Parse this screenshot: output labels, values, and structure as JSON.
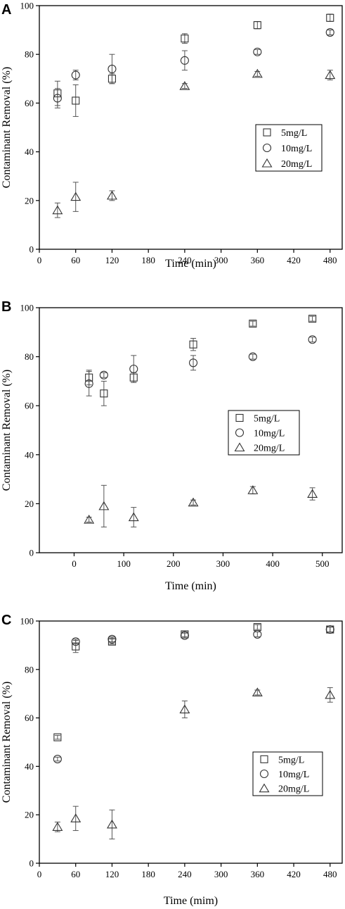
{
  "chart_data": [
    {
      "panel": "A",
      "type": "scatter",
      "xlabel": "Time (min)",
      "ylabel": "Contaminant Removal (%)",
      "xlim": [
        0,
        500
      ],
      "ylim": [
        0,
        100
      ],
      "xticks": [
        0,
        60,
        120,
        180,
        240,
        300,
        360,
        420,
        480
      ],
      "yticks": [
        0,
        20,
        40,
        60,
        80,
        100
      ],
      "legend_position": "right-middle",
      "series": [
        {
          "name": "5mg/L",
          "marker": "square",
          "x": [
            30,
            60,
            120,
            240,
            360,
            480
          ],
          "y": [
            64,
            61,
            70,
            86.5,
            92,
            95
          ],
          "err": [
            5,
            6.5,
            2,
            2,
            1.5,
            1.5
          ]
        },
        {
          "name": "10mg/L",
          "marker": "circle",
          "x": [
            30,
            60,
            120,
            240,
            360,
            480
          ],
          "y": [
            62,
            71.5,
            74,
            77.5,
            81,
            89
          ],
          "err": [
            4,
            2,
            6,
            4,
            1,
            1
          ]
        },
        {
          "name": "20mg/L",
          "marker": "triangle",
          "x": [
            30,
            60,
            120,
            240,
            360,
            480
          ],
          "y": [
            16,
            21.5,
            22,
            67,
            72,
            71.5
          ],
          "err": [
            3,
            6,
            2,
            1,
            1,
            2
          ]
        }
      ]
    },
    {
      "panel": "B",
      "type": "scatter",
      "xlabel": "Time (min)",
      "ylabel": "Contaminant Removal (%)",
      "xlim": [
        -70,
        540
      ],
      "ylim": [
        0,
        100
      ],
      "xticks": [
        0,
        100,
        200,
        300,
        400,
        500
      ],
      "yticks": [
        0,
        20,
        40,
        60,
        80,
        100
      ],
      "legend_position": "right-middle",
      "series": [
        {
          "name": "5mg/L",
          "marker": "square",
          "x": [
            30,
            60,
            120,
            240,
            360,
            480
          ],
          "y": [
            71.5,
            65,
            71.5,
            85,
            93.5,
            95.5
          ],
          "err": [
            3,
            5,
            2,
            2.5,
            1,
            1
          ]
        },
        {
          "name": "10mg/L",
          "marker": "circle",
          "x": [
            30,
            60,
            120,
            240,
            360,
            480
          ],
          "y": [
            69,
            72.5,
            75,
            77.5,
            80,
            87
          ],
          "err": [
            5,
            1,
            5.5,
            3,
            1,
            1
          ]
        },
        {
          "name": "20mg/L",
          "marker": "triangle",
          "x": [
            30,
            60,
            120,
            240,
            360,
            480
          ],
          "y": [
            13.5,
            19,
            14.5,
            20.5,
            25.5,
            24
          ],
          "err": [
            1,
            8.5,
            4,
            1,
            1.5,
            2.5
          ]
        }
      ]
    },
    {
      "panel": "C",
      "type": "scatter",
      "xlabel": "Time (mim)",
      "ylabel": "Contaminant Removal (%)",
      "xlim": [
        0,
        500
      ],
      "ylim": [
        0,
        100
      ],
      "xticks": [
        0,
        60,
        120,
        180,
        240,
        300,
        360,
        420,
        480
      ],
      "yticks": [
        0,
        20,
        40,
        60,
        80,
        100
      ],
      "legend_position": "right-middle",
      "series": [
        {
          "name": "5mg/L",
          "marker": "square",
          "x": [
            30,
            60,
            120,
            240,
            360,
            480
          ],
          "y": [
            52,
            89.5,
            91.5,
            94.5,
            97.5,
            96.5
          ],
          "err": [
            0.8,
            2.5,
            1,
            1,
            1,
            1
          ]
        },
        {
          "name": "10mg/L",
          "marker": "circle",
          "x": [
            30,
            60,
            120,
            240,
            360,
            480
          ],
          "y": [
            43,
            91.5,
            92.5,
            94,
            94.5,
            96.5
          ],
          "err": [
            0.8,
            1,
            1,
            1,
            1,
            1
          ]
        },
        {
          "name": "20mg/L",
          "marker": "triangle",
          "x": [
            30,
            60,
            120,
            240,
            360,
            480
          ],
          "y": [
            15,
            18.5,
            16,
            63.5,
            70.5,
            69.5
          ],
          "err": [
            2,
            5,
            6,
            3.5,
            1,
            3
          ]
        }
      ]
    }
  ]
}
